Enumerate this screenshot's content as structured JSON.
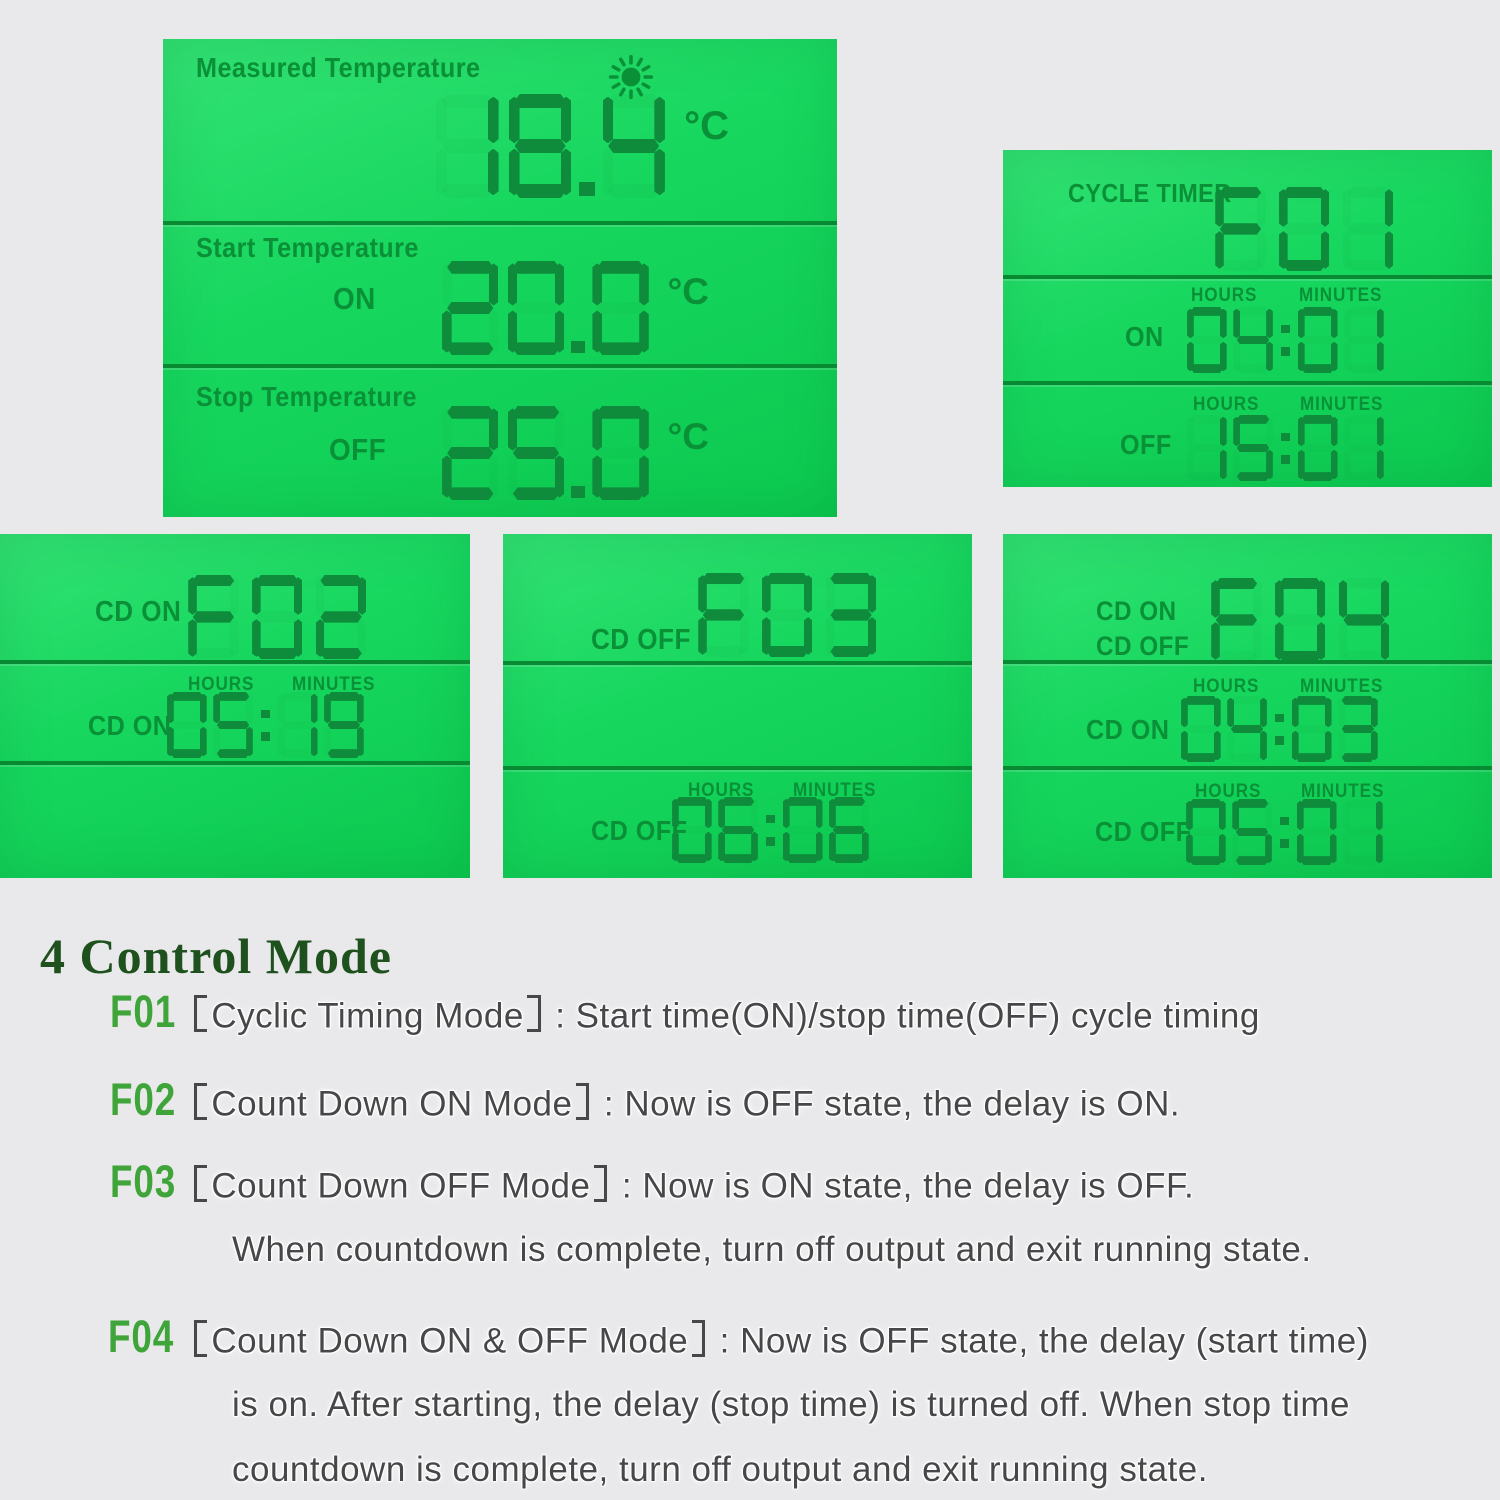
{
  "page": {
    "background": "#e9e9eb"
  },
  "lcd": {
    "ink_color": "#0a9138",
    "segment_color": "#0e8c3c",
    "screen_green_top": "#33e274",
    "screen_green_bottom": "#0cc94f",
    "labels": {
      "hours": "HOURS",
      "minutes": "MINUTES"
    },
    "temp_panel": {
      "measured": {
        "label": "Measured Temperature",
        "value": "18.4",
        "unit": "°C",
        "sun_icon": "sun-icon"
      },
      "start": {
        "label": "Start Temperature",
        "state": "ON",
        "value": "20.0",
        "unit": "°C"
      },
      "stop": {
        "label": "Stop Temperature",
        "state": "OFF",
        "value": "25.0",
        "unit": "°C"
      }
    },
    "cycle_panel": {
      "title": "CYCLE TIMER",
      "mode": "F01",
      "on_row": {
        "state": "ON",
        "value": "04:01"
      },
      "off_row": {
        "state": "OFF",
        "value": "15:01"
      }
    },
    "cd_on_panel": {
      "top_state": "CD ON",
      "mode": "F02",
      "row": {
        "state": "CD ON",
        "value": "05:19"
      }
    },
    "cd_off_panel": {
      "top_state": "CD OFF",
      "mode": "F03",
      "row": {
        "state": "CD OFF",
        "value": "06:06"
      }
    },
    "cd_on_off_panel": {
      "top_state_1": "CD ON",
      "top_state_2": "CD OFF",
      "mode": "F04",
      "on_row": {
        "state": "CD ON",
        "value": "04:03"
      },
      "off_row": {
        "state": "CD OFF",
        "value": "05:01"
      }
    }
  },
  "section": {
    "heading": "4 Control Mode",
    "modes": [
      {
        "code": "F01",
        "name": "Cyclic Timing Mode",
        "after": " : Start time(ON)/stop time(OFF) cycle timing",
        "cont": []
      },
      {
        "code": "F02",
        "name": "Count Down ON Mode",
        "after": " : Now is OFF state, the delay is ON.",
        "cont": []
      },
      {
        "code": "F03",
        "name": "Count Down OFF Mode",
        "after": " : Now is ON state, the delay is OFF.",
        "cont": [
          "When countdown is complete, turn off output and exit running state."
        ]
      },
      {
        "code": "F04",
        "name": "Count Down ON & OFF Mode",
        "after": " : Now is OFF state, the delay (start time)",
        "cont": [
          "is on. After starting, the delay (stop time) is turned off. When stop time",
          "countdown is complete, turn off output and exit running state."
        ]
      }
    ]
  }
}
